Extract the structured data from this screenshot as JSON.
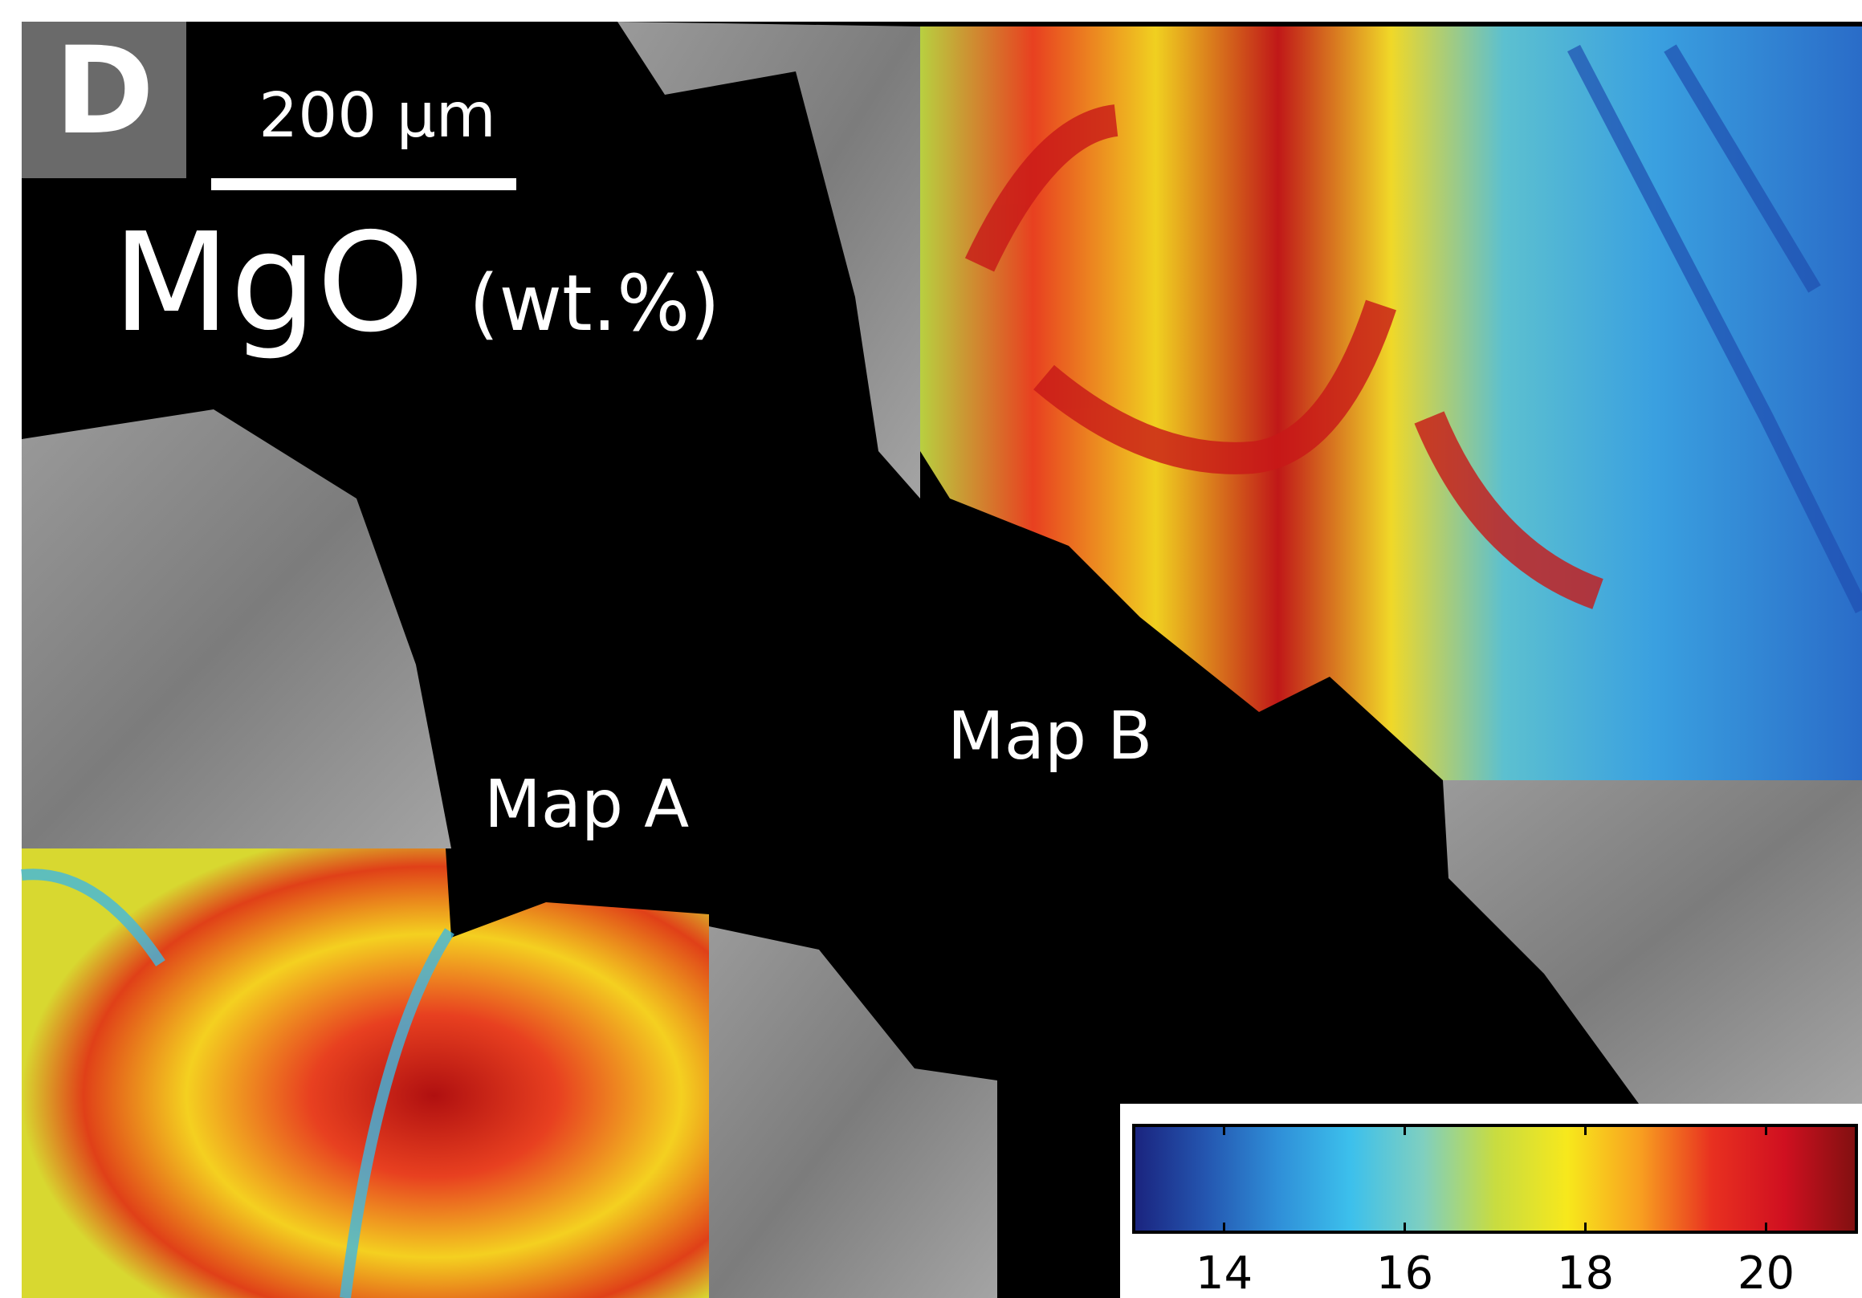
{
  "panel_label": "D",
  "scale_bar": {
    "label": "200 µm"
  },
  "title": {
    "element": "MgO",
    "unit": "(wt.%)"
  },
  "map_labels": [
    "Map A",
    "Map B"
  ],
  "colorbar": {
    "lim": [
      13,
      21
    ],
    "ticks": [
      14,
      16,
      18,
      20
    ],
    "colors": [
      "#1a237e",
      "#2456b0",
      "#2f8fd8",
      "#3cc0ec",
      "#7fcfc0",
      "#c8dc40",
      "#f7e81c",
      "#f8a020",
      "#e83020",
      "#d01020",
      "#801010"
    ]
  }
}
